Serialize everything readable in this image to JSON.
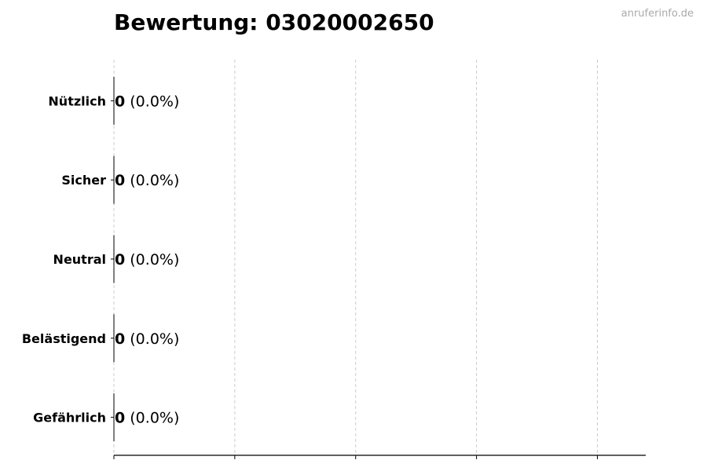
{
  "title": "Bewertung: 03020002650",
  "watermark": "anruferinfo.de",
  "chart_data": {
    "type": "bar",
    "orientation": "horizontal",
    "title": "Bewertung: 03020002650",
    "categories": [
      "Nützlich",
      "Sicher",
      "Neutral",
      "Belästigend",
      "Gefährlich"
    ],
    "values": [
      0,
      0,
      0,
      0,
      0
    ],
    "percent_labels": [
      "(0.0%)",
      "(0.0%)",
      "(0.0%)",
      "(0.0%)",
      "(0.0%)"
    ],
    "xlabel": "",
    "ylabel": "",
    "xlim": [
      0,
      4.4
    ],
    "x_ticks": [
      0,
      1,
      2,
      3,
      4
    ],
    "x_tick_labels_shown": false,
    "grid": "vertical dashed",
    "colors": {
      "bar_edge": "#000000",
      "grid": "#cccccc"
    }
  }
}
